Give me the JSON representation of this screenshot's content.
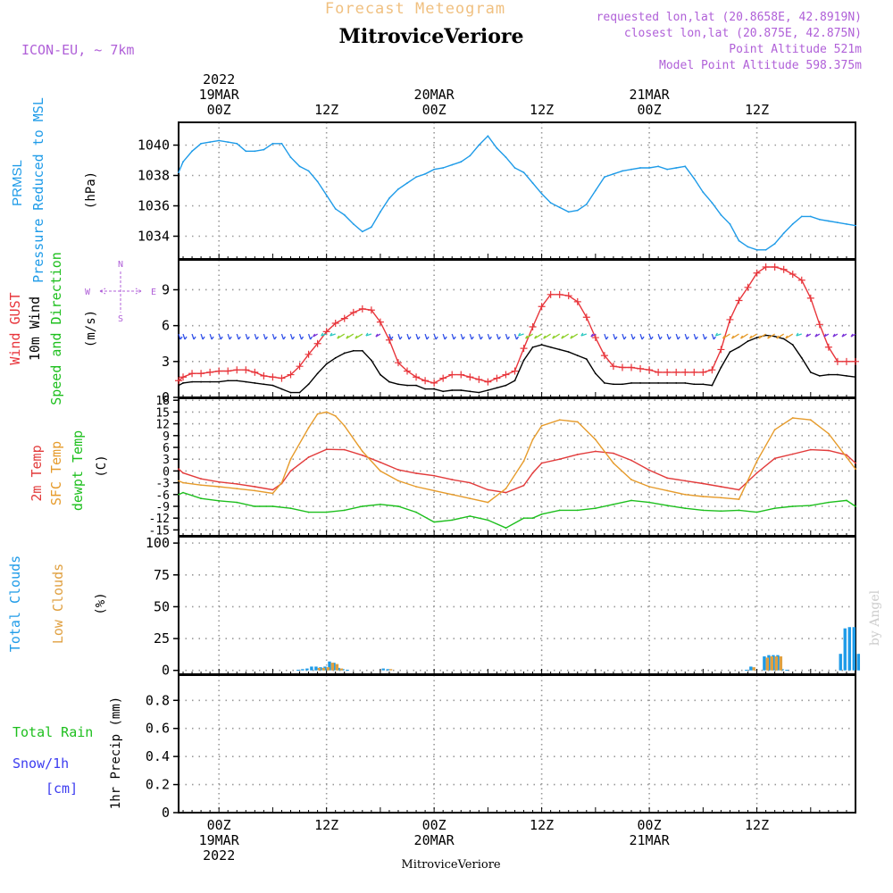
{
  "header": {
    "product_title": "Forecast Meteogram",
    "location": "MitroviceVeriore",
    "model": "ICON-EU, ~ 7km",
    "requested": "requested lon,lat (20.8658E, 42.8919N)",
    "closest": "closest lon,lat (20.875E, 42.875N)",
    "point_altitude": "Point Altitude 521m",
    "model_altitude": "Model Point Altitude 598.375m",
    "footer_location": "MitroviceVeriore",
    "watermark": "by Angel"
  },
  "colors": {
    "pressure": "#1e9be8",
    "gust": "#e8353b",
    "wind": "#000000",
    "temp": "#e23b3b",
    "sfc_temp": "#e69b2b",
    "dewpt": "#1dbf1d",
    "total_cloud": "#1e9be8",
    "low_cloud": "#e0a040",
    "rain": "#1dbf1d",
    "snow": "#3c3cf0",
    "label_purple": "#b060d8",
    "title_orange": "#f0c080"
  },
  "time_axis": {
    "top_labels": [
      {
        "h": 0,
        "lines": [
          "2022",
          "19MAR",
          "00Z"
        ]
      },
      {
        "h": 12,
        "lines": [
          "12Z"
        ]
      },
      {
        "h": 24,
        "lines": [
          "20MAR",
          "00Z"
        ]
      },
      {
        "h": 36,
        "lines": [
          "12Z"
        ]
      },
      {
        "h": 48,
        "lines": [
          "21MAR",
          "00Z"
        ]
      },
      {
        "h": 60,
        "lines": [
          "12Z"
        ]
      }
    ],
    "bottom_labels": [
      {
        "h": 0,
        "lines": [
          "00Z",
          "19MAR",
          "2022"
        ]
      },
      {
        "h": 12,
        "lines": [
          "12Z"
        ]
      },
      {
        "h": 24,
        "lines": [
          "00Z",
          "20MAR"
        ]
      },
      {
        "h": 36,
        "lines": [
          "12Z"
        ]
      },
      {
        "h": 48,
        "lines": [
          "00Z",
          "21MAR"
        ]
      },
      {
        "h": 60,
        "lines": [
          "12Z"
        ]
      }
    ]
  },
  "chart_data": [
    {
      "type": "line",
      "panel": "pressure",
      "labels": [
        "PRMSL",
        "Pressure Reduced to MSL"
      ],
      "unit": "(hPa)",
      "ylim": [
        1032.5,
        1041.5
      ],
      "yticks": [
        1034,
        1036,
        1038,
        1040
      ],
      "series": [
        {
          "name": "PRMSL",
          "x": [
            -4.5,
            -4,
            -3,
            -2,
            -1,
            0,
            1,
            2,
            3,
            4,
            5,
            6,
            7,
            8,
            9,
            10,
            11,
            12,
            13,
            14,
            15,
            16,
            17,
            18,
            19,
            20,
            21,
            22,
            23,
            24,
            25,
            26,
            27,
            28,
            29,
            30,
            31,
            32,
            33,
            34,
            35,
            36,
            37,
            38,
            39,
            40,
            41,
            42,
            43,
            44,
            45,
            46,
            47,
            48,
            49,
            50,
            51,
            52,
            53,
            54,
            55,
            56,
            57,
            58,
            59,
            60,
            61,
            62,
            63,
            64,
            65,
            66,
            67,
            68,
            69,
            70,
            71
          ],
          "y": [
            1038.2,
            1038.9,
            1039.6,
            1040.1,
            1040.2,
            1040.3,
            1040.2,
            1040.1,
            1039.6,
            1039.6,
            1039.7,
            1040.1,
            1040.1,
            1039.2,
            1038.6,
            1038.3,
            1037.6,
            1036.7,
            1035.8,
            1035.4,
            1034.8,
            1034.3,
            1034.6,
            1035.6,
            1036.5,
            1037.1,
            1037.5,
            1037.9,
            1038.1,
            1038.4,
            1038.5,
            1038.7,
            1038.9,
            1039.3,
            1040.0,
            1040.6,
            1039.8,
            1039.2,
            1038.5,
            1038.2,
            1037.5,
            1036.8,
            1036.2,
            1035.9,
            1035.6,
            1035.7,
            1036.1,
            1037.0,
            1037.9,
            1038.1,
            1038.3,
            1038.4,
            1038.5,
            1038.5,
            1038.6,
            1038.4,
            1038.5,
            1038.6,
            1037.8,
            1036.9,
            1036.2,
            1035.4,
            1034.8,
            1033.7,
            1033.3,
            1033.1,
            1033.1,
            1033.5,
            1034.2,
            1034.8,
            1035.3,
            1035.3,
            1035.1,
            1035.0,
            1034.9,
            1034.8,
            1034.7
          ]
        }
      ]
    },
    {
      "type": "line",
      "panel": "wind",
      "labels": [
        "Wind GUST",
        "10m Wind",
        "Speed and Direction"
      ],
      "unit": "(m/s)",
      "ylim": [
        0,
        11.5
      ],
      "yticks": [
        0,
        3,
        6,
        9
      ],
      "compass": {
        "n": "N",
        "e": "E",
        "s": "S",
        "w": "W"
      },
      "series": [
        {
          "name": "Wind GUST",
          "x": [
            -4.5,
            -4,
            -3,
            -2,
            -1,
            0,
            1,
            2,
            3,
            4,
            5,
            6,
            7,
            8,
            9,
            10,
            11,
            12,
            13,
            14,
            15,
            16,
            17,
            18,
            19,
            20,
            21,
            22,
            23,
            24,
            25,
            26,
            27,
            28,
            29,
            30,
            31,
            32,
            33,
            34,
            35,
            36,
            37,
            38,
            39,
            40,
            41,
            42,
            43,
            44,
            45,
            46,
            47,
            48,
            49,
            50,
            51,
            52,
            53,
            54,
            55,
            56,
            57,
            58,
            59,
            60,
            61,
            62,
            63,
            64,
            65,
            66,
            67,
            68,
            69,
            70,
            71
          ],
          "y": [
            1.4,
            1.7,
            2.0,
            2.0,
            2.1,
            2.2,
            2.2,
            2.3,
            2.3,
            2.1,
            1.8,
            1.7,
            1.6,
            1.9,
            2.6,
            3.6,
            4.5,
            5.5,
            6.2,
            6.6,
            7.1,
            7.4,
            7.3,
            6.3,
            4.8,
            2.9,
            2.2,
            1.7,
            1.4,
            1.2,
            1.6,
            1.9,
            1.9,
            1.7,
            1.5,
            1.3,
            1.6,
            1.9,
            2.2,
            4.1,
            5.9,
            7.6,
            8.6,
            8.6,
            8.5,
            8.0,
            6.7,
            5.0,
            3.5,
            2.6,
            2.5,
            2.5,
            2.4,
            2.3,
            2.1,
            2.1,
            2.1,
            2.1,
            2.1,
            2.1,
            2.3,
            4.0,
            6.5,
            8.1,
            9.2,
            10.4,
            10.9,
            10.9,
            10.7,
            10.3,
            9.8,
            8.3,
            6.1,
            4.2,
            3.0,
            3.0,
            3.0
          ]
        },
        {
          "name": "10m Wind",
          "x": [
            -4.5,
            -4,
            -3,
            -2,
            -1,
            0,
            1,
            2,
            3,
            4,
            5,
            6,
            7,
            8,
            9,
            10,
            11,
            12,
            13,
            14,
            15,
            16,
            17,
            18,
            19,
            20,
            21,
            22,
            23,
            24,
            25,
            26,
            27,
            28,
            29,
            30,
            31,
            32,
            33,
            34,
            35,
            36,
            37,
            38,
            39,
            40,
            41,
            42,
            43,
            44,
            45,
            46,
            47,
            48,
            49,
            50,
            51,
            52,
            53,
            54,
            55,
            56,
            57,
            58,
            59,
            60,
            61,
            62,
            63,
            64,
            65,
            66,
            67,
            68,
            69,
            70,
            71
          ],
          "y": [
            1.0,
            1.2,
            1.3,
            1.3,
            1.3,
            1.3,
            1.4,
            1.4,
            1.3,
            1.2,
            1.1,
            1.0,
            0.7,
            0.4,
            0.4,
            1.1,
            2.0,
            2.8,
            3.3,
            3.7,
            3.9,
            3.9,
            3.1,
            1.9,
            1.3,
            1.1,
            1.0,
            1.0,
            0.7,
            0.7,
            0.5,
            0.6,
            0.6,
            0.5,
            0.4,
            0.6,
            0.8,
            1.0,
            1.4,
            3.1,
            4.2,
            4.4,
            4.2,
            4.0,
            3.8,
            3.5,
            3.2,
            2.0,
            1.2,
            1.1,
            1.1,
            1.2,
            1.2,
            1.2,
            1.2,
            1.2,
            1.2,
            1.2,
            1.1,
            1.1,
            1.0,
            2.5,
            3.8,
            4.2,
            4.7,
            5.0,
            5.2,
            5.1,
            4.9,
            4.4,
            3.3,
            2.1,
            1.8,
            1.9,
            1.9,
            1.8,
            1.7
          ]
        }
      ]
    },
    {
      "type": "line",
      "panel": "temperature",
      "labels": [
        "2m Temp",
        "SFC Temp",
        "dewpt Temp"
      ],
      "unit": "(C)",
      "ylim": [
        -16.5,
        18.5
      ],
      "yticks": [
        -15,
        -12,
        -9,
        -6,
        -3,
        0,
        3,
        6,
        9,
        12,
        15,
        18
      ],
      "series": [
        {
          "name": "2m Temp",
          "x": [
            -4.5,
            -4,
            -2,
            0,
            2,
            4,
            6,
            7,
            8,
            10,
            12,
            14,
            16,
            18,
            20,
            22,
            24,
            26,
            28,
            30,
            32,
            34,
            35,
            36,
            38,
            40,
            42,
            44,
            46,
            48,
            50,
            52,
            54,
            56,
            58,
            60,
            62,
            64,
            66,
            68,
            70,
            71
          ],
          "y": [
            0.5,
            -0.5,
            -2.0,
            -2.8,
            -3.3,
            -4.0,
            -4.8,
            -3.2,
            0.0,
            3.5,
            5.5,
            5.4,
            4.0,
            2.2,
            0.3,
            -0.6,
            -1.2,
            -2.2,
            -3.0,
            -4.8,
            -5.5,
            -3.7,
            -0.5,
            2.0,
            3.0,
            4.2,
            5.0,
            4.5,
            2.7,
            0.2,
            -1.8,
            -2.5,
            -3.2,
            -4.0,
            -4.8,
            -0.5,
            3.2,
            4.3,
            5.4,
            5.2,
            4.1,
            2.0
          ]
        },
        {
          "name": "SFC Temp",
          "x": [
            -4.5,
            -4,
            -2,
            0,
            2,
            4,
            6,
            7,
            8,
            10,
            11,
            12,
            13,
            14,
            16,
            18,
            20,
            22,
            24,
            26,
            28,
            30,
            32,
            34,
            35,
            36,
            38,
            40,
            42,
            44,
            46,
            48,
            50,
            52,
            54,
            56,
            58,
            60,
            62,
            64,
            66,
            68,
            70,
            71
          ],
          "y": [
            -2.5,
            -3.0,
            -3.6,
            -4.0,
            -4.5,
            -5.0,
            -5.7,
            -3.0,
            3.0,
            11.0,
            14.5,
            15.0,
            14.0,
            11.5,
            5.0,
            0.0,
            -2.5,
            -4.0,
            -5.0,
            -6.0,
            -7.0,
            -8.0,
            -4.5,
            2.5,
            8.0,
            11.5,
            13.0,
            12.5,
            8.0,
            2.0,
            -2.2,
            -4.0,
            -5.0,
            -6.0,
            -6.5,
            -6.8,
            -7.2,
            2.5,
            10.5,
            13.5,
            13.0,
            9.5,
            3.5,
            0.5
          ]
        },
        {
          "name": "dewpt Temp",
          "x": [
            -4.5,
            -4,
            -2,
            0,
            2,
            4,
            6,
            8,
            10,
            12,
            14,
            16,
            18,
            20,
            22,
            24,
            26,
            28,
            30,
            32,
            34,
            35,
            36,
            38,
            40,
            42,
            44,
            46,
            48,
            50,
            52,
            54,
            56,
            58,
            60,
            62,
            64,
            66,
            68,
            70,
            71
          ],
          "y": [
            -6.0,
            -5.5,
            -7.0,
            -7.6,
            -8.0,
            -9.0,
            -9.0,
            -9.5,
            -10.5,
            -10.5,
            -10.0,
            -9.0,
            -8.5,
            -9.0,
            -10.5,
            -13.0,
            -12.5,
            -11.5,
            -12.5,
            -14.5,
            -12.0,
            -12.0,
            -11.0,
            -10.0,
            -10.0,
            -9.5,
            -8.5,
            -7.5,
            -8.0,
            -8.8,
            -9.5,
            -10.0,
            -10.2,
            -10.0,
            -10.5,
            -9.5,
            -9.0,
            -8.8,
            -8.0,
            -7.5,
            -9.0
          ]
        }
      ]
    },
    {
      "type": "bar",
      "panel": "clouds",
      "labels": [
        "Total Clouds",
        "Low Clouds"
      ],
      "unit": "(%)",
      "ylim": [
        -3,
        105
      ],
      "yticks": [
        0,
        25,
        50,
        75,
        100
      ],
      "series": [
        {
          "name": "Total Clouds",
          "x": [
            9,
            9.5,
            10,
            10.5,
            11,
            11.5,
            12,
            12.5,
            13,
            13.5,
            14,
            14.5,
            18.5,
            19,
            59,
            59.5,
            61,
            61.5,
            62,
            62.5,
            63,
            63.5,
            69.5,
            70,
            70.5,
            71,
            71.5
          ],
          "y": [
            0.5,
            1,
            1.5,
            3,
            3,
            2.5,
            3,
            7,
            6,
            2,
            1,
            0.5,
            1.5,
            1,
            0.5,
            3,
            11,
            12,
            12,
            12,
            1,
            0.5,
            13,
            33,
            34,
            34,
            13
          ]
        },
        {
          "name": "Low Clouds",
          "x": [
            11,
            11.5,
            12,
            12.5,
            13,
            13.5,
            19,
            59.5,
            61,
            61.5,
            62,
            62.5
          ],
          "y": [
            2,
            2,
            2.5,
            6,
            5,
            1.5,
            1,
            2.5,
            10,
            11,
            11,
            11
          ]
        }
      ]
    },
    {
      "type": "bar",
      "panel": "precip",
      "labels": [
        "Total Rain",
        "Snow/1h",
        "[cm]"
      ],
      "unit": "1hr Precip (mm)",
      "ylim": [
        0,
        0.98
      ],
      "yticks": [
        0,
        0.2,
        0.4,
        0.6,
        0.8
      ],
      "series": [
        {
          "name": "Total Rain",
          "x": [],
          "y": []
        },
        {
          "name": "Snow/1h",
          "x": [],
          "y": []
        }
      ]
    }
  ]
}
